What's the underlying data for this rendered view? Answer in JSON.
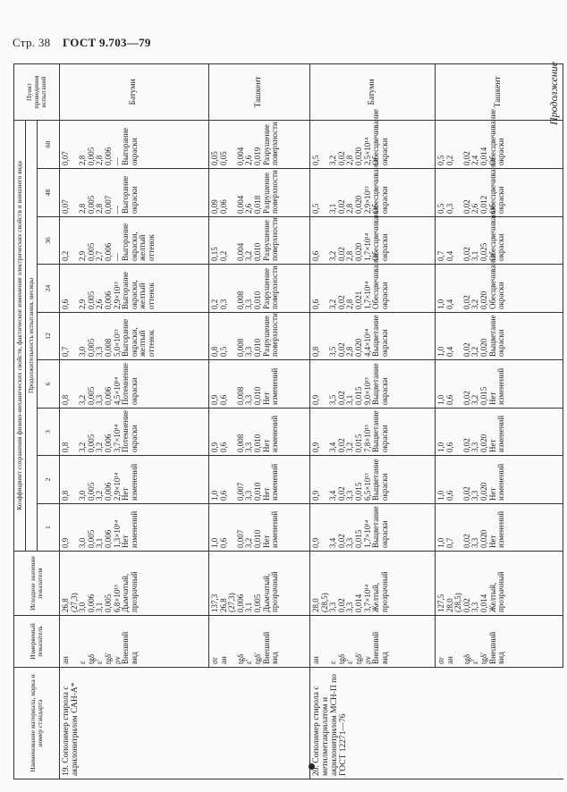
{
  "page": {
    "number": "Стр. 38",
    "standard": "ГОСТ 9.703—79",
    "continuation": "Продолжение"
  },
  "table": {
    "headers": {
      "name": "Наименование материала, марка и номер стандарта",
      "param": "Измеряемый показатель",
      "initial": "Исходное значение показателя",
      "group": "Коэффициент сохранения физико-механических свойств, фактическое изменение электрических свойств и внешнего вида",
      "duration": "Продолжительность испытания, месяцы",
      "months": [
        "1",
        "2",
        "3",
        "6",
        "12",
        "24",
        "36",
        "48",
        "60"
      ],
      "place": "Пункт проведения испытаний"
    },
    "rows": [
      {
        "name": "19. Сополимер стирола с акрилонитрилом САН-А*",
        "params": "aн\n\nε\ntgδ\nε′\ntgδ′\nρv\nВнешний вид",
        "initial": "26,8\n(27,3)\n3,0\n0,006\n3,1\n0,005\n6,8×10¹³\nДымчатый, прозрачный",
        "months": [
          "0,9\n\n3,0\n0,005\n3,1\n0,006\n1,3×10¹⁴\nНет изменений",
          "0,8\n\n3,0\n0,005\n3,2\n0,006\n2,9×10¹⁴\nНет изменений",
          "0,8\n\n3,2\n0,005\n3,2\n0,006\n3,7×10¹⁴\nПотемнение окраски",
          "0,8\n\n3,2\n0,005\n3,3\n0,006\n4,5×10¹⁴\nПотемнение окраски",
          "0,7\n\n3,0\n0,005\n3,3\n0,008\n5,0×10¹³\nВыгорание окраски, желтый оттенок",
          "0,6\n\n2,9\n0,005\n2,6\n0,006\n2,9×10¹³\nВыгорание окраски, желтый оттенок",
          "0,2\n\n2,9\n0,005\n2,7\n0,006\n—\nВыгорание окраски, желтый оттенок",
          "0,07\n\n2,8\n0,005\n2,8\n0,007\n—\nВыгорание окраски",
          "0,07\n\n2,8\n0,005\n2,8\n0,006\n—\nВыгорание окраски"
        ],
        "place": "Батуми"
      },
      {
        "name": "",
        "params": "σr\naн\n\ntgδ\nε′\ntgδ′\nВнешний вид",
        "initial": "137,3\n26,8\n(27,3)\n0,006\n3,1\n0,005\nДымчатый, прозрачный",
        "months": [
          "1,0\n0,6\n\n0,007\n3,2\n0,010\nНет изменений",
          "1,0\n0,6\n\n0,007\n3,3\n0,010\nНет изменений",
          "0,9\n0,6\n\n0,008\n3,3\n0,010\nНет изменений",
          "0,9\n0,6\n\n0,008\n3,3\n0,010\nНет изменений",
          "0,8\n0,5\n\n0,008\n3,3\n0,010\nРазрушение поверхности",
          "0,2\n0,3\n\n0,008\n3,3\n0,010\nРазрушение поверхности",
          "0,15\n0,2\n\n0,004\n3,2\n0,010\nРазрушение поверхности",
          "0,09\n0,06\n\n0,004\n2,6\n0,018\nРазрушение поверхности",
          "0,05\n0,05\n\n0,004\n2,6\n0,019\nРазрушение поверхности"
        ],
        "place": "Ташкент"
      },
      {
        "name": "20. Сополимер стирола с метилметакрилатом и акрилонитрилом МСН-П по ГОСТ 12271—76",
        "params": "aн\n\nε\ntgδ\nε′\ntgδ′\nρv\nВнешний вид",
        "initial": "28,0\n(28,5)\n3,3\n0,02\n3,3\n0,014\n3,7×10¹⁴\nЖелтый, прозрачный",
        "months": [
          "0,9\n\n3,4\n0,02\n3,3\n0,015\n1,7×10¹⁴\nВыцветание окраски",
          "0,9\n\n3,4\n0,02\n3,3\n0,015\n6,5×10¹³\nВыцветание окраски",
          "0,9\n\n3,4\n0,02\n3,2\n0,015\n7,8×10¹³\nВыцветание окраски",
          "0,9\n\n3,5\n0,02\n3,1\n0,015\n9,0×10¹³\nВыцветание окраски",
          "0,8\n\n3,5\n0,02\n2,8\n0,020\n4,4×10¹⁴\nВыцветание окраски",
          "0,6\n\n3,2\n0,02\n2,8\n0,021\n1,7×10¹⁴\nОбесцвечивание окраски",
          "0,6\n\n3,2\n0,02\n2,8\n0,020\n1,7×10¹⁴\nОбесцвечивание окраски",
          "0,5\n\n3,1\n0,02\n2,8\n0,020\n2,9×10¹³\nОбесцвечивание окраски",
          "0,5\n\n3,2\n0,02\n2,8\n0,020\n2,5×10¹⁴\nОбесцвечивание окраски"
        ],
        "place": "Батуми"
      },
      {
        "name": "",
        "params": "σr\naн\n\ntgδ\nε′\ntgδ′\nВнешний вид",
        "initial": "127,5\n28,0\n(28,5)\n0,02\n3,3\n0,014\nЖелтый, прозрачный",
        "months": [
          "1,0\n0,7\n\n0,02\n3,3\n0,020\nНет изменений",
          "1,0\n0,6\n\n0,02\n3,3\n0,020\nНет изменений",
          "1,0\n0,6\n\n0,02\n3,3\n0,020\nНет изменений",
          "1,0\n0,6\n\n0,02\n3,2\n0,015\nНет изменений",
          "1,0\n0,4\n\n0,02\n3,2\n0,020\nВыцветание окраски",
          "1,0\n0,4\n\n0,02\n3,2\n0,020\nОбесцвечивание окраски",
          "0,7\n0,4\n\n0,02\n3,1\n0,025\nОбесцвечивание окраски",
          "0,5\n0,3\n\n0,02\n2,6\n0,012\nОбесцвечивание окраски",
          "0,5\n0,2\n\n0,02\n2,4\n0,014\nОбесцвечивание окраски"
        ],
        "place": "Ташкент"
      }
    ]
  }
}
